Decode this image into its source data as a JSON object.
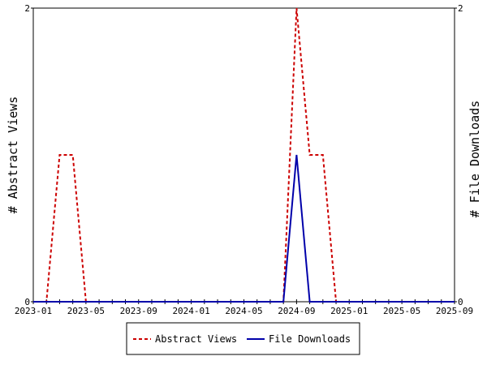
{
  "chart_data": {
    "type": "line",
    "ylabel_left": "# Abstract Views",
    "ylabel_right": "# File Downloads",
    "x_ticks": [
      "2023-01",
      "2023-05",
      "2023-09",
      "2024-01",
      "2024-05",
      "2024-09",
      "2025-01",
      "2025-05",
      "2025-09"
    ],
    "xlim": [
      "2023-01",
      "2025-09"
    ],
    "ylim_left": [
      0,
      2
    ],
    "ylim_right": [
      0,
      2
    ],
    "y_ticks_left": [
      "0",
      "2"
    ],
    "y_ticks_right": [
      "0",
      "2"
    ],
    "grid": false,
    "legend_position": "bottom-center",
    "series": [
      {
        "name": "Abstract Views",
        "axis": "left",
        "color": "#cc0000",
        "style": "dashed",
        "x": [
          "2023-01",
          "2023-02",
          "2023-03",
          "2023-04",
          "2023-05",
          "2023-06",
          "2023-07",
          "2023-08",
          "2023-09",
          "2023-10",
          "2023-11",
          "2023-12",
          "2024-01",
          "2024-02",
          "2024-03",
          "2024-04",
          "2024-05",
          "2024-06",
          "2024-07",
          "2024-08",
          "2024-09",
          "2024-10",
          "2024-11",
          "2024-12",
          "2025-01",
          "2025-02",
          "2025-03",
          "2025-04",
          "2025-05",
          "2025-06",
          "2025-07",
          "2025-08",
          "2025-09"
        ],
        "values": [
          0,
          0,
          1,
          1,
          0,
          0,
          0,
          0,
          0,
          0,
          0,
          0,
          0,
          0,
          0,
          0,
          0,
          0,
          0,
          0,
          2,
          1,
          1,
          0,
          0,
          0,
          0,
          0,
          0,
          0,
          0,
          0,
          0
        ]
      },
      {
        "name": "File Downloads",
        "axis": "right",
        "color": "#0000aa",
        "style": "solid",
        "x": [
          "2023-01",
          "2023-02",
          "2023-03",
          "2023-04",
          "2023-05",
          "2023-06",
          "2023-07",
          "2023-08",
          "2023-09",
          "2023-10",
          "2023-11",
          "2023-12",
          "2024-01",
          "2024-02",
          "2024-03",
          "2024-04",
          "2024-05",
          "2024-06",
          "2024-07",
          "2024-08",
          "2024-09",
          "2024-10",
          "2024-11",
          "2024-12",
          "2025-01",
          "2025-02",
          "2025-03",
          "2025-04",
          "2025-05",
          "2025-06",
          "2025-07",
          "2025-08",
          "2025-09"
        ],
        "values": [
          0,
          0,
          0,
          0,
          0,
          0,
          0,
          0,
          0,
          0,
          0,
          0,
          0,
          0,
          0,
          0,
          0,
          0,
          0,
          0,
          1,
          0,
          0,
          0,
          0,
          0,
          0,
          0,
          0,
          0,
          0,
          0,
          0
        ]
      }
    ]
  }
}
